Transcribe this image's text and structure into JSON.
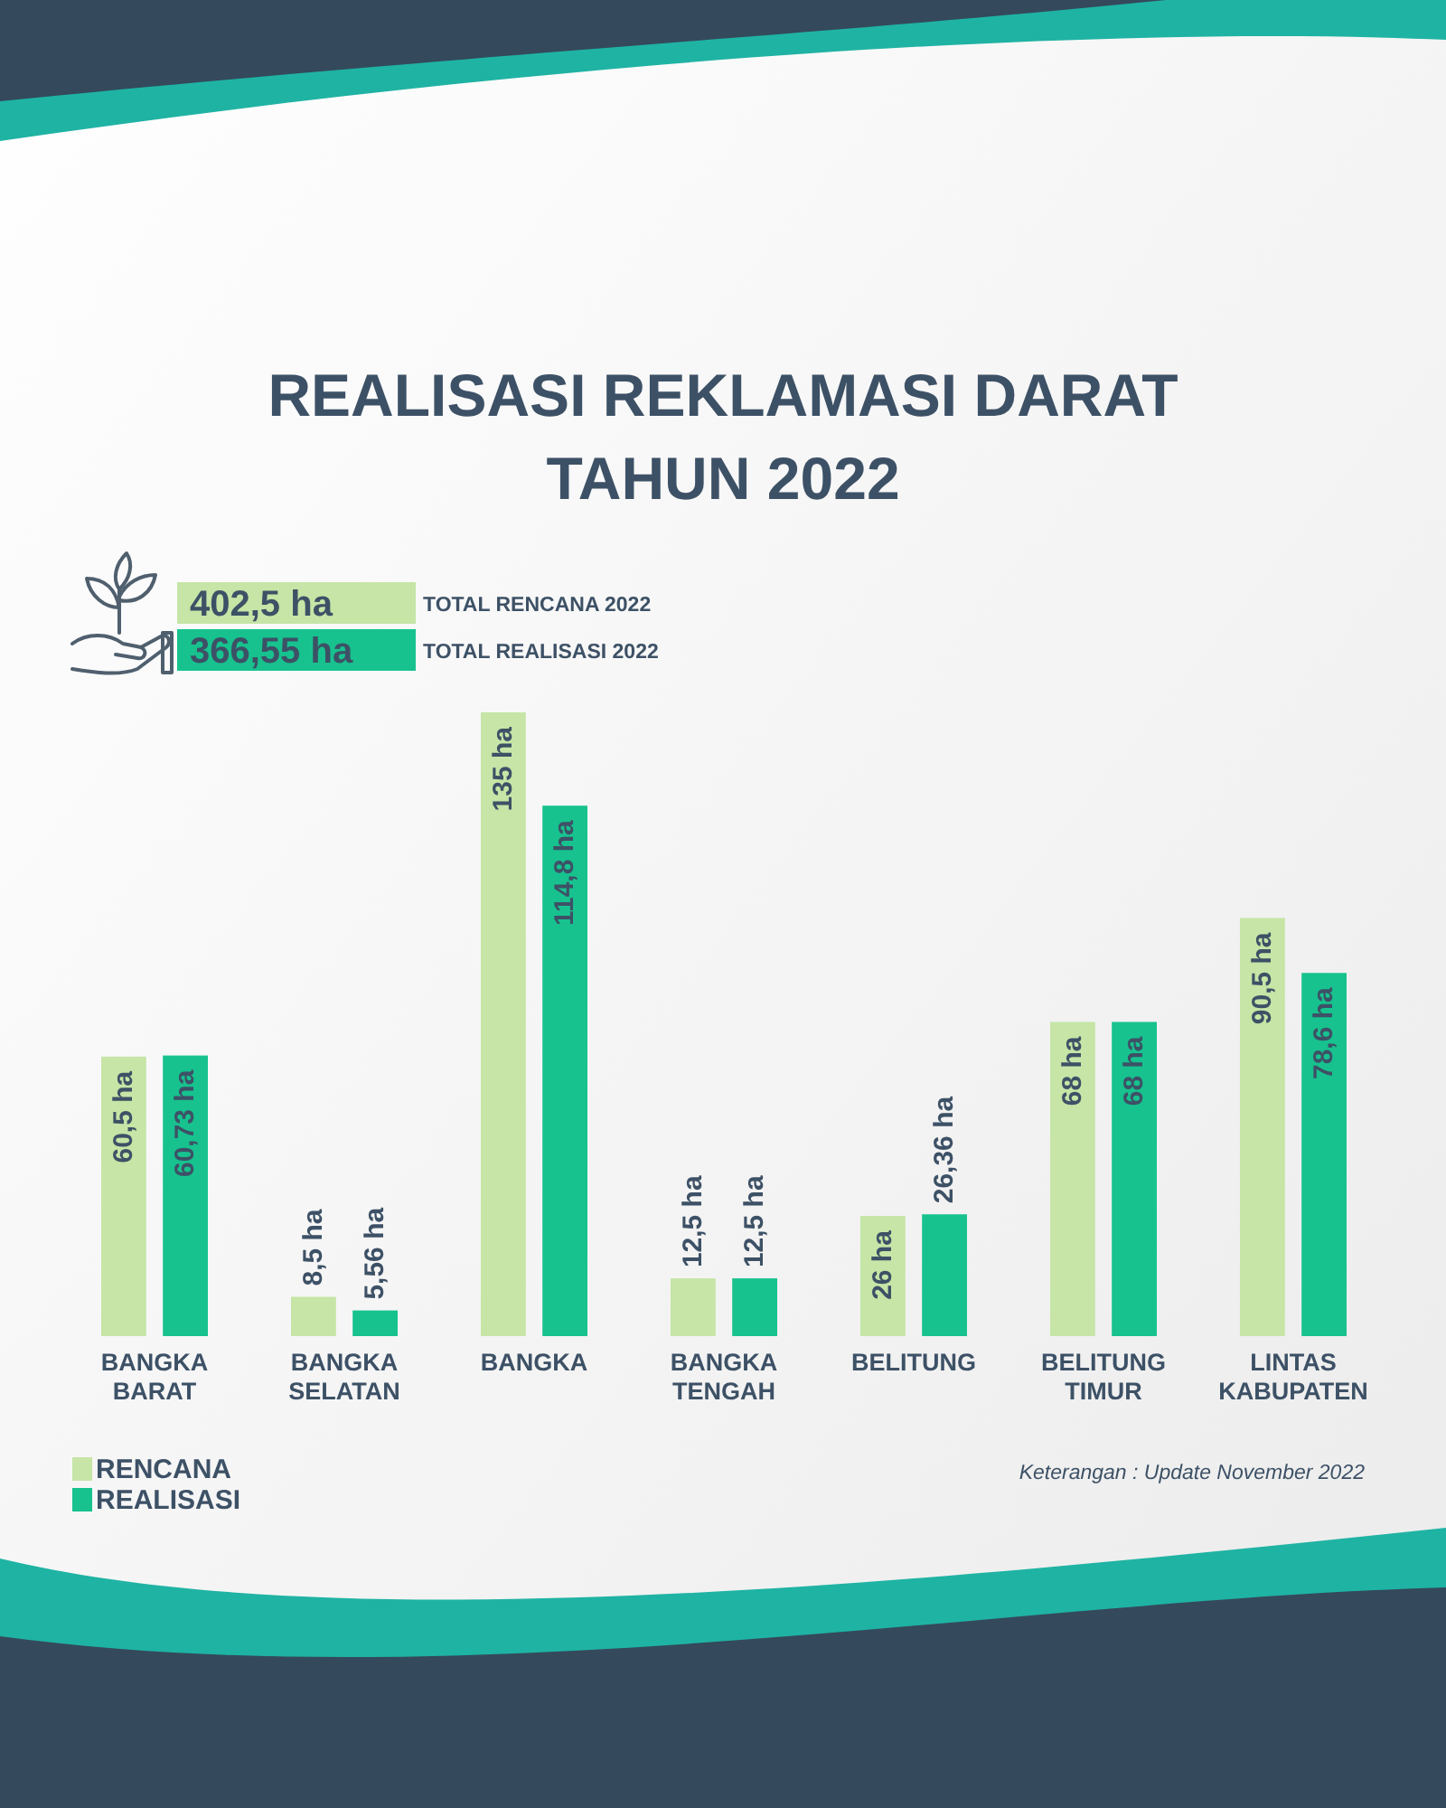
{
  "chart_data": {
    "type": "bar",
    "title": "REALISASI REKLAMASI DARAT TAHUN 2022",
    "categories": [
      "BANGKA BARAT",
      "BANGKA SELATAN",
      "BANGKA",
      "BANGKA TENGAH",
      "BELITUNG",
      "BELITUNG TIMUR",
      "LINTAS KABUPATEN"
    ],
    "series": [
      {
        "name": "RENCANA",
        "color": "#c6e5a6",
        "values": [
          60.5,
          8.5,
          135,
          12.5,
          26,
          68,
          90.5
        ],
        "value_labels": [
          "60,5 ha",
          "8,5 ha",
          "135 ha",
          "12,5 ha",
          "26 ha",
          "68 ha",
          "90,5 ha"
        ]
      },
      {
        "name": "REALISASI",
        "color": "#17c28e",
        "values": [
          60.73,
          5.56,
          114.8,
          12.5,
          26.36,
          68,
          78.6
        ],
        "value_labels": [
          "60,73 ha",
          "5,56 ha",
          "114,8 ha",
          "12,5 ha",
          "26,36 ha",
          "68 ha",
          "78,6 ha"
        ]
      }
    ],
    "legend": "bottom left",
    "annotations": [
      "402,5 ha",
      "TOTAL RENCANA 2022",
      "366,55 ha",
      "TOTAL REALISASI 2022",
      "Keterangan : Update November 2022"
    ]
  }
}
